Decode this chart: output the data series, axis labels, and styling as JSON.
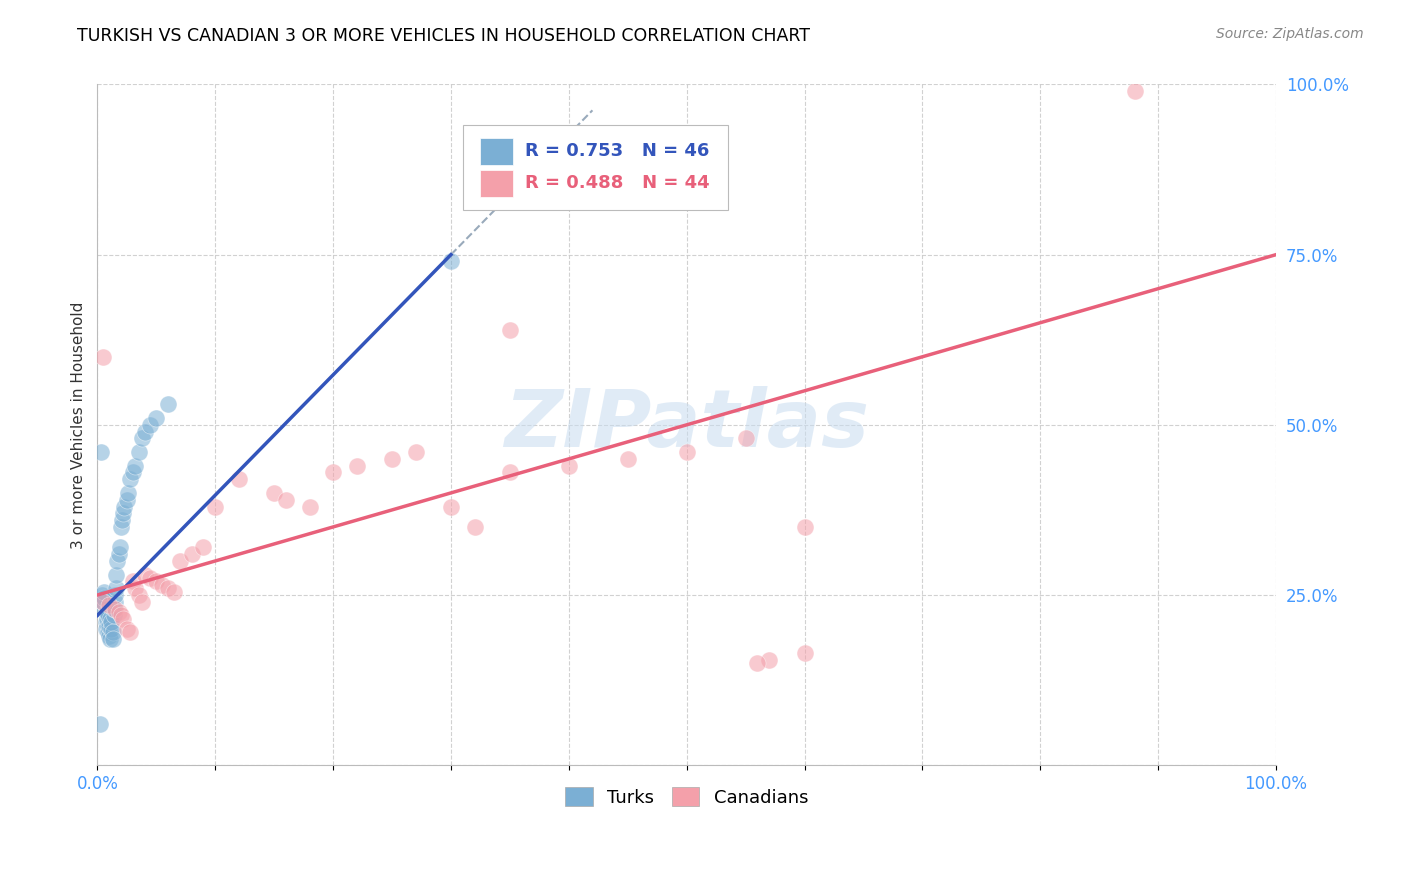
{
  "title": "TURKISH VS CANADIAN 3 OR MORE VEHICLES IN HOUSEHOLD CORRELATION CHART",
  "source": "Source: ZipAtlas.com",
  "ylabel": "3 or more Vehicles in Household",
  "watermark": "ZIPatlas",
  "xlim": [
    0.0,
    1.0
  ],
  "ylim": [
    0.0,
    1.0
  ],
  "xticks": [
    0.0,
    0.1,
    0.2,
    0.3,
    0.4,
    0.5,
    0.6,
    0.7,
    0.8,
    0.9,
    1.0
  ],
  "yticks": [
    0.0,
    0.25,
    0.5,
    0.75,
    1.0
  ],
  "xticklabels": [
    "0.0%",
    "",
    "",
    "",
    "",
    "",
    "",
    "",
    "",
    "",
    "100.0%"
  ],
  "yticklabels": [
    "",
    "25.0%",
    "50.0%",
    "75.0%",
    "100.0%"
  ],
  "R_turks": 0.753,
  "N_turks": 46,
  "R_canadians": 0.488,
  "N_canadians": 44,
  "turks_color": "#7BAFD4",
  "canadians_color": "#F4A0AA",
  "turks_line_color": "#3355BB",
  "canadians_line_color": "#E8607A",
  "turks_x": [
    0.003,
    0.004,
    0.005,
    0.006,
    0.006,
    0.007,
    0.007,
    0.008,
    0.008,
    0.009,
    0.009,
    0.01,
    0.01,
    0.011,
    0.011,
    0.012,
    0.012,
    0.013,
    0.013,
    0.014,
    0.014,
    0.015,
    0.015,
    0.016,
    0.016,
    0.017,
    0.018,
    0.019,
    0.02,
    0.021,
    0.022,
    0.023,
    0.025,
    0.026,
    0.028,
    0.03,
    0.032,
    0.035,
    0.038,
    0.04,
    0.045,
    0.05,
    0.06,
    0.003,
    0.3,
    0.002
  ],
  "turks_y": [
    0.23,
    0.25,
    0.24,
    0.245,
    0.255,
    0.21,
    0.2,
    0.215,
    0.225,
    0.22,
    0.195,
    0.19,
    0.205,
    0.185,
    0.215,
    0.2,
    0.21,
    0.195,
    0.185,
    0.22,
    0.23,
    0.24,
    0.25,
    0.26,
    0.28,
    0.3,
    0.31,
    0.32,
    0.35,
    0.36,
    0.37,
    0.38,
    0.39,
    0.4,
    0.42,
    0.43,
    0.44,
    0.46,
    0.48,
    0.49,
    0.5,
    0.51,
    0.53,
    0.46,
    0.74,
    0.06
  ],
  "canadians_x": [
    0.005,
    0.01,
    0.015,
    0.018,
    0.02,
    0.022,
    0.025,
    0.028,
    0.03,
    0.032,
    0.035,
    0.038,
    0.04,
    0.045,
    0.05,
    0.055,
    0.06,
    0.065,
    0.07,
    0.08,
    0.09,
    0.1,
    0.12,
    0.15,
    0.16,
    0.18,
    0.2,
    0.22,
    0.25,
    0.27,
    0.3,
    0.32,
    0.35,
    0.4,
    0.45,
    0.5,
    0.55,
    0.57,
    0.6,
    0.005,
    0.35,
    0.6,
    0.56,
    0.88
  ],
  "canadians_y": [
    0.24,
    0.235,
    0.23,
    0.225,
    0.22,
    0.215,
    0.2,
    0.195,
    0.27,
    0.26,
    0.25,
    0.24,
    0.28,
    0.275,
    0.27,
    0.265,
    0.26,
    0.255,
    0.3,
    0.31,
    0.32,
    0.38,
    0.42,
    0.4,
    0.39,
    0.38,
    0.43,
    0.44,
    0.45,
    0.46,
    0.38,
    0.35,
    0.43,
    0.44,
    0.45,
    0.46,
    0.48,
    0.155,
    0.165,
    0.6,
    0.64,
    0.35,
    0.15,
    0.99
  ]
}
